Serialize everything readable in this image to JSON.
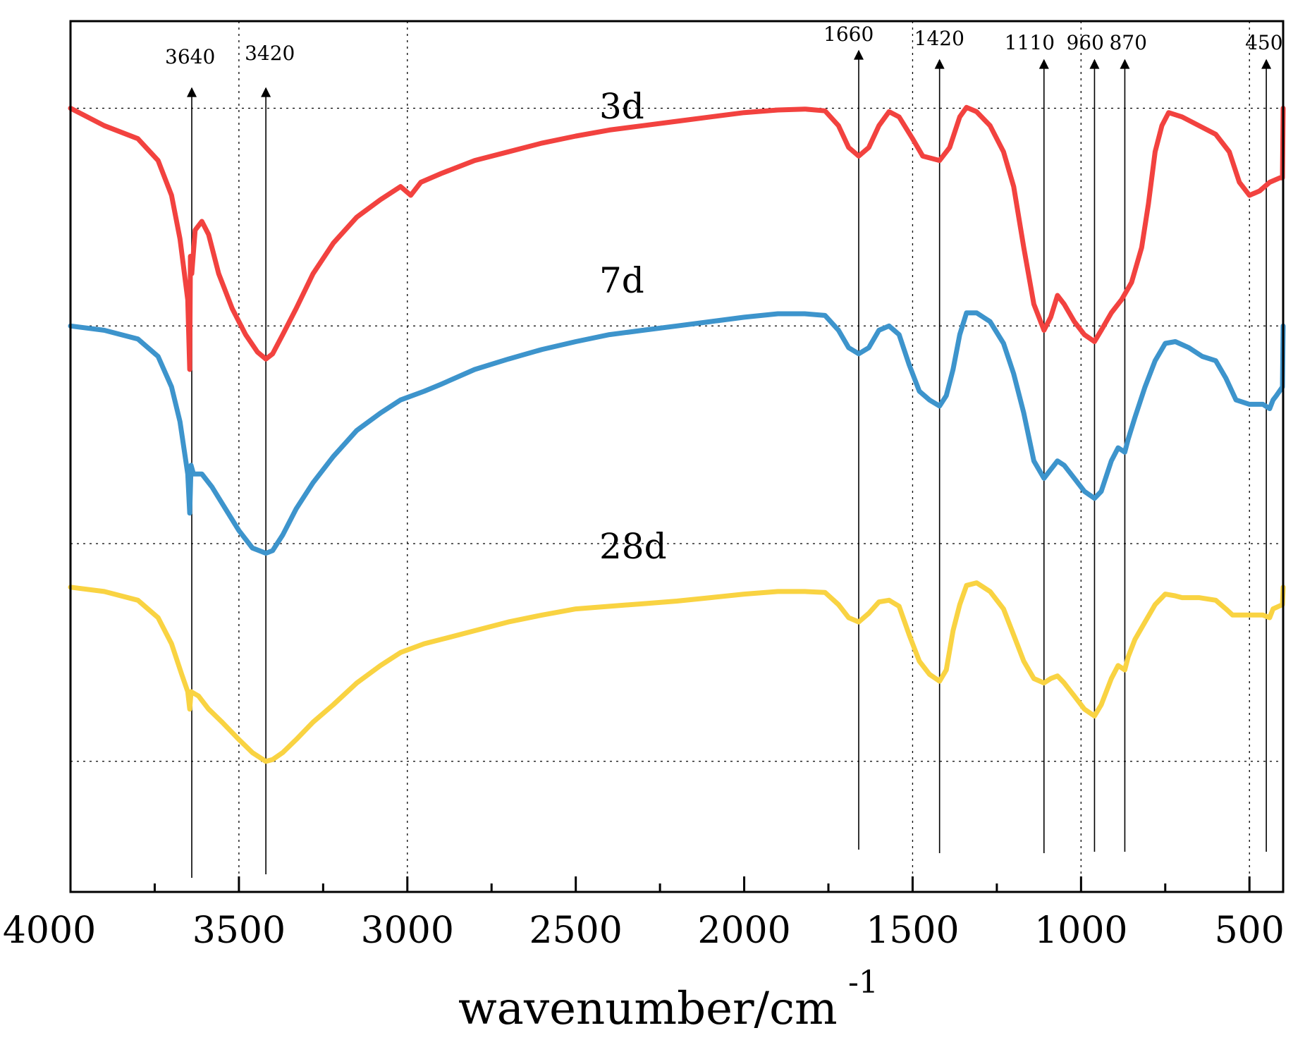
{
  "chart_data": {
    "type": "line",
    "title": "",
    "xlabel": "wavenumber/cm",
    "xlabel_superscript": "-1",
    "xlim": [
      4000,
      400
    ],
    "x_reversed": true,
    "x_ticks": [
      4000,
      3500,
      3000,
      2500,
      2000,
      1500,
      1000,
      500
    ],
    "x_tick_labels": [
      "4000",
      "3500",
      "3000",
      "2500",
      "2000",
      "1500",
      "1000",
      "500"
    ],
    "ylabel": "",
    "ylim": [
      0,
      100
    ],
    "y_ticks_visible": false,
    "grid": true,
    "grid_x": [
      3500,
      3000,
      1500,
      1000,
      500
    ],
    "grid_y": [
      90,
      65,
      40,
      15
    ],
    "peak_markers": [
      {
        "label": "3640",
        "x": 3640
      },
      {
        "label": "3420",
        "x": 3420
      },
      {
        "label": "1660",
        "x": 1660
      },
      {
        "label": "1420",
        "x": 1420
      },
      {
        "label": "1110",
        "x": 1110
      },
      {
        "label": "960",
        "x": 960
      },
      {
        "label": "870",
        "x": 870
      },
      {
        "label": "450",
        "x": 450
      }
    ],
    "series": [
      {
        "name": "3d",
        "color": "#f2423f",
        "points": [
          [
            4000,
            90
          ],
          [
            3900,
            88
          ],
          [
            3800,
            86.5
          ],
          [
            3740,
            84
          ],
          [
            3700,
            80
          ],
          [
            3675,
            75
          ],
          [
            3652,
            68
          ],
          [
            3646,
            60
          ],
          [
            3644,
            73
          ],
          [
            3640,
            71
          ],
          [
            3630,
            76
          ],
          [
            3610,
            77
          ],
          [
            3590,
            75.5
          ],
          [
            3560,
            71
          ],
          [
            3520,
            67
          ],
          [
            3480,
            64
          ],
          [
            3445,
            62
          ],
          [
            3420,
            61.2
          ],
          [
            3400,
            61.8
          ],
          [
            3370,
            64
          ],
          [
            3330,
            67
          ],
          [
            3280,
            71
          ],
          [
            3220,
            74.5
          ],
          [
            3150,
            77.5
          ],
          [
            3080,
            79.5
          ],
          [
            3020,
            81
          ],
          [
            2990,
            80
          ],
          [
            2960,
            81.5
          ],
          [
            2900,
            82.5
          ],
          [
            2800,
            84
          ],
          [
            2700,
            85
          ],
          [
            2600,
            86
          ],
          [
            2500,
            86.8
          ],
          [
            2400,
            87.5
          ],
          [
            2300,
            88
          ],
          [
            2200,
            88.5
          ],
          [
            2100,
            89
          ],
          [
            2000,
            89.5
          ],
          [
            1900,
            89.8
          ],
          [
            1820,
            89.9
          ],
          [
            1760,
            89.7
          ],
          [
            1720,
            88
          ],
          [
            1690,
            85.5
          ],
          [
            1660,
            84.5
          ],
          [
            1630,
            85.5
          ],
          [
            1600,
            88
          ],
          [
            1570,
            89.6
          ],
          [
            1540,
            89
          ],
          [
            1500,
            86.5
          ],
          [
            1470,
            84.5
          ],
          [
            1420,
            84
          ],
          [
            1390,
            85.5
          ],
          [
            1360,
            89
          ],
          [
            1340,
            90.1
          ],
          [
            1310,
            89.6
          ],
          [
            1270,
            88
          ],
          [
            1230,
            85
          ],
          [
            1200,
            81
          ],
          [
            1170,
            74
          ],
          [
            1140,
            67.5
          ],
          [
            1110,
            64.5
          ],
          [
            1090,
            66
          ],
          [
            1070,
            68.5
          ],
          [
            1050,
            67.5
          ],
          [
            1020,
            65.5
          ],
          [
            990,
            64
          ],
          [
            960,
            63.2
          ],
          [
            940,
            64.5
          ],
          [
            910,
            66.5
          ],
          [
            880,
            68
          ],
          [
            850,
            70
          ],
          [
            820,
            74
          ],
          [
            800,
            79
          ],
          [
            780,
            85
          ],
          [
            760,
            88
          ],
          [
            740,
            89.5
          ],
          [
            700,
            89
          ],
          [
            650,
            88
          ],
          [
            600,
            87
          ],
          [
            560,
            85
          ],
          [
            530,
            81.5
          ],
          [
            500,
            80
          ],
          [
            470,
            80.5
          ],
          [
            440,
            81.5
          ],
          [
            410,
            82
          ],
          [
            402,
            82
          ],
          [
            400,
            90
          ]
        ]
      },
      {
        "name": "7d",
        "color": "#3d94cc",
        "points": [
          [
            4000,
            65
          ],
          [
            3900,
            64.5
          ],
          [
            3800,
            63.5
          ],
          [
            3740,
            61.5
          ],
          [
            3700,
            58
          ],
          [
            3675,
            54
          ],
          [
            3652,
            48
          ],
          [
            3646,
            43.5
          ],
          [
            3642,
            49
          ],
          [
            3635,
            48
          ],
          [
            3610,
            48
          ],
          [
            3580,
            46.5
          ],
          [
            3540,
            44
          ],
          [
            3500,
            41.5
          ],
          [
            3460,
            39.5
          ],
          [
            3420,
            38.9
          ],
          [
            3400,
            39.2
          ],
          [
            3370,
            41
          ],
          [
            3330,
            44
          ],
          [
            3280,
            47
          ],
          [
            3220,
            50
          ],
          [
            3150,
            53
          ],
          [
            3080,
            55
          ],
          [
            3020,
            56.5
          ],
          [
            2950,
            57.5
          ],
          [
            2900,
            58.3
          ],
          [
            2800,
            60
          ],
          [
            2700,
            61.2
          ],
          [
            2600,
            62.3
          ],
          [
            2500,
            63.2
          ],
          [
            2400,
            64
          ],
          [
            2300,
            64.5
          ],
          [
            2200,
            65
          ],
          [
            2100,
            65.5
          ],
          [
            2000,
            66
          ],
          [
            1900,
            66.4
          ],
          [
            1820,
            66.4
          ],
          [
            1760,
            66.2
          ],
          [
            1720,
            64.5
          ],
          [
            1690,
            62.5
          ],
          [
            1660,
            61.8
          ],
          [
            1630,
            62.5
          ],
          [
            1600,
            64.5
          ],
          [
            1570,
            65
          ],
          [
            1540,
            64
          ],
          [
            1510,
            60.5
          ],
          [
            1480,
            57.5
          ],
          [
            1450,
            56.5
          ],
          [
            1420,
            55.8
          ],
          [
            1400,
            57
          ],
          [
            1380,
            60
          ],
          [
            1360,
            64
          ],
          [
            1340,
            66.5
          ],
          [
            1310,
            66.5
          ],
          [
            1270,
            65.5
          ],
          [
            1230,
            63
          ],
          [
            1200,
            59.5
          ],
          [
            1170,
            55
          ],
          [
            1140,
            49.5
          ],
          [
            1110,
            47.5
          ],
          [
            1090,
            48.5
          ],
          [
            1070,
            49.5
          ],
          [
            1050,
            49
          ],
          [
            1020,
            47.5
          ],
          [
            990,
            46
          ],
          [
            960,
            45.2
          ],
          [
            940,
            46
          ],
          [
            910,
            49.5
          ],
          [
            890,
            51
          ],
          [
            870,
            50.5
          ],
          [
            860,
            52
          ],
          [
            840,
            54.5
          ],
          [
            810,
            58
          ],
          [
            780,
            61
          ],
          [
            750,
            63
          ],
          [
            720,
            63.2
          ],
          [
            680,
            62.5
          ],
          [
            640,
            61.5
          ],
          [
            600,
            61
          ],
          [
            570,
            59
          ],
          [
            540,
            56.5
          ],
          [
            500,
            56
          ],
          [
            460,
            56
          ],
          [
            440,
            55.5
          ],
          [
            430,
            56.5
          ],
          [
            420,
            57
          ],
          [
            402,
            58
          ],
          [
            400,
            65
          ]
        ]
      },
      {
        "name": "28d",
        "color": "#f9d342",
        "points": [
          [
            4000,
            35
          ],
          [
            3900,
            34.5
          ],
          [
            3800,
            33.5
          ],
          [
            3740,
            31.5
          ],
          [
            3700,
            28.5
          ],
          [
            3670,
            25
          ],
          [
            3652,
            23
          ],
          [
            3646,
            21
          ],
          [
            3642,
            23
          ],
          [
            3620,
            22.5
          ],
          [
            3590,
            21
          ],
          [
            3550,
            19.5
          ],
          [
            3500,
            17.5
          ],
          [
            3460,
            16
          ],
          [
            3420,
            15
          ],
          [
            3400,
            15.2
          ],
          [
            3370,
            16
          ],
          [
            3330,
            17.5
          ],
          [
            3280,
            19.5
          ],
          [
            3220,
            21.5
          ],
          [
            3150,
            24
          ],
          [
            3080,
            26
          ],
          [
            3020,
            27.5
          ],
          [
            2950,
            28.5
          ],
          [
            2900,
            29
          ],
          [
            2800,
            30
          ],
          [
            2700,
            31
          ],
          [
            2600,
            31.8
          ],
          [
            2500,
            32.5
          ],
          [
            2400,
            32.8
          ],
          [
            2300,
            33.1
          ],
          [
            2200,
            33.4
          ],
          [
            2100,
            33.8
          ],
          [
            2000,
            34.2
          ],
          [
            1900,
            34.5
          ],
          [
            1820,
            34.5
          ],
          [
            1760,
            34.4
          ],
          [
            1720,
            33
          ],
          [
            1690,
            31.5
          ],
          [
            1660,
            31
          ],
          [
            1630,
            32
          ],
          [
            1600,
            33.3
          ],
          [
            1570,
            33.5
          ],
          [
            1540,
            32.8
          ],
          [
            1510,
            29.5
          ],
          [
            1480,
            26.5
          ],
          [
            1450,
            25
          ],
          [
            1420,
            24.2
          ],
          [
            1400,
            25.5
          ],
          [
            1380,
            30
          ],
          [
            1360,
            33
          ],
          [
            1340,
            35.2
          ],
          [
            1310,
            35.5
          ],
          [
            1270,
            34.5
          ],
          [
            1230,
            32.5
          ],
          [
            1200,
            29.5
          ],
          [
            1170,
            26.5
          ],
          [
            1140,
            24.5
          ],
          [
            1110,
            24
          ],
          [
            1090,
            24.5
          ],
          [
            1070,
            24.8
          ],
          [
            1050,
            24
          ],
          [
            1020,
            22.5
          ],
          [
            990,
            21
          ],
          [
            960,
            20.2
          ],
          [
            940,
            21.5
          ],
          [
            910,
            24.5
          ],
          [
            890,
            26
          ],
          [
            870,
            25.5
          ],
          [
            860,
            27
          ],
          [
            840,
            29
          ],
          [
            810,
            31
          ],
          [
            780,
            33
          ],
          [
            750,
            34.2
          ],
          [
            720,
            34
          ],
          [
            700,
            33.8
          ],
          [
            650,
            33.8
          ],
          [
            600,
            33.5
          ],
          [
            570,
            32.5
          ],
          [
            550,
            31.8
          ],
          [
            500,
            31.8
          ],
          [
            460,
            31.8
          ],
          [
            440,
            31.5
          ],
          [
            430,
            32.5
          ],
          [
            402,
            33
          ],
          [
            400,
            35
          ]
        ]
      }
    ]
  }
}
